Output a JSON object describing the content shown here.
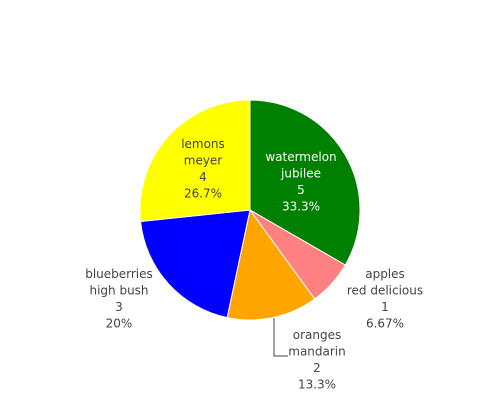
{
  "chart_data": {
    "type": "pie",
    "direction": "clockwise",
    "start_angle_deg": 0,
    "slices": [
      {
        "label": "watermelon",
        "variety": "jubilee",
        "value": 5,
        "percent": "33.3%",
        "color": "#008000",
        "text_color": "#ffffff"
      },
      {
        "label": "apples",
        "variety": "red delicious",
        "value": 1,
        "percent": "6.67%",
        "color": "#ff8080",
        "text_color": "#444444"
      },
      {
        "label": "oranges",
        "variety": "mandarin",
        "value": 2,
        "percent": "13.3%",
        "color": "#ffa500",
        "text_color": "#444444"
      },
      {
        "label": "blueberries",
        "variety": "high bush",
        "value": 3,
        "percent": "20%",
        "color": "#0000ff",
        "text_color": "#444444"
      },
      {
        "label": "lemons",
        "variety": "meyer",
        "value": 4,
        "percent": "26.7%",
        "color": "#ffff00",
        "text_color": "#444444"
      }
    ],
    "legend": "none"
  }
}
